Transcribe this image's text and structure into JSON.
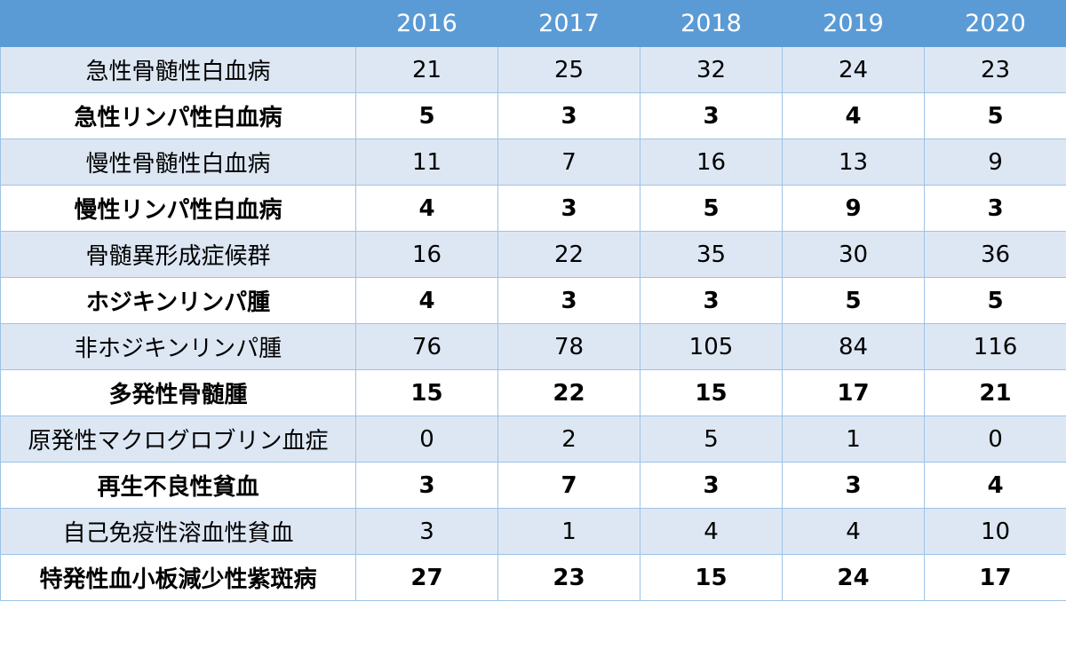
{
  "table": {
    "header": [
      "2016",
      "2017",
      "2018",
      "2019",
      "2020"
    ],
    "rows": [
      {
        "label": "急性骨髄性白血病",
        "values": [
          21,
          25,
          32,
          24,
          23
        ]
      },
      {
        "label": "急性リンパ性白血病",
        "values": [
          5,
          3,
          3,
          4,
          5
        ]
      },
      {
        "label": "慢性骨髄性白血病",
        "values": [
          11,
          7,
          16,
          13,
          9
        ]
      },
      {
        "label": "慢性リンパ性白血病",
        "values": [
          4,
          3,
          5,
          9,
          3
        ]
      },
      {
        "label": "骨髄異形成症候群",
        "values": [
          16,
          22,
          35,
          30,
          36
        ]
      },
      {
        "label": "ホジキンリンパ腫",
        "values": [
          4,
          3,
          3,
          5,
          5
        ]
      },
      {
        "label": "非ホジキンリンパ腫",
        "values": [
          76,
          78,
          105,
          84,
          116
        ]
      },
      {
        "label": "多発性骨髄腫",
        "values": [
          15,
          22,
          15,
          17,
          21
        ]
      },
      {
        "label": "原発性マクログロブリン血症",
        "values": [
          0,
          2,
          5,
          1,
          0
        ]
      },
      {
        "label": "再生不良性貧血",
        "values": [
          3,
          7,
          3,
          3,
          4
        ]
      },
      {
        "label": "自己免疫性溶血性貧血",
        "values": [
          3,
          1,
          4,
          4,
          10
        ]
      },
      {
        "label": "特発性血小板減少性紫斑病",
        "values": [
          27,
          23,
          15,
          24,
          17
        ]
      }
    ]
  }
}
